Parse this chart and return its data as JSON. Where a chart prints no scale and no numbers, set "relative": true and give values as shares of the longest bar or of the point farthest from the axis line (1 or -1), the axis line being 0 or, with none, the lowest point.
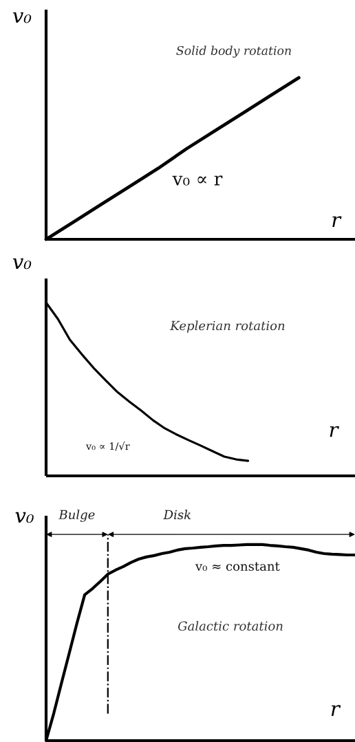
{
  "chart_data": [
    {
      "type": "line",
      "title": "Solid body rotation",
      "ylabel": "v₀",
      "xlabel": "r",
      "annotations": [
        "v₀ ∝ r"
      ],
      "relative": true,
      "categories": [
        null,
        null,
        null,
        null,
        null,
        null,
        null,
        null,
        null,
        null,
        null,
        null
      ],
      "series": [
        {
          "color": "#000000",
          "values": [
            0,
            0.11,
            0.22,
            0.33,
            0.44,
            0.56,
            0.67,
            0.78,
            0.89,
            1.0,
            null,
            null
          ]
        }
      ]
    },
    {
      "type": "line",
      "title": "Keplerian rotation",
      "ylabel": "v₀",
      "xlabel": "r",
      "annotations": [
        "v₀ ∝ 1/√r"
      ],
      "relative": true,
      "categories": [
        null,
        null,
        null,
        null,
        null,
        null,
        null,
        null,
        null,
        null,
        null,
        null,
        null,
        null,
        null,
        null,
        null,
        null,
        null,
        null,
        null,
        null,
        null,
        null,
        null,
        null,
        null
      ],
      "series": [
        {
          "color": "#000000",
          "values": [
            1.0,
            0.905,
            0.786,
            0.702,
            0.623,
            0.552,
            0.484,
            0.429,
            0.377,
            0.321,
            0.274,
            0.238,
            0.206,
            0.175,
            0.143,
            0.111,
            0.095,
            0.087,
            null,
            null,
            null,
            null,
            null,
            null,
            null,
            null,
            null
          ]
        }
      ]
    },
    {
      "type": "line",
      "title": "Galactic rotation",
      "ylabel": "v₀",
      "xlabel": "r",
      "annotations": [
        "Bulge",
        "Disk",
        "v₀ ≈ constant"
      ],
      "relative": true,
      "categories": [
        null,
        null,
        null,
        null,
        null,
        null,
        null,
        null,
        null,
        null,
        null,
        null,
        null,
        null,
        null,
        null,
        null,
        null,
        null,
        null,
        null,
        null,
        null,
        null,
        null,
        null,
        null,
        null,
        null,
        null,
        null,
        null,
        null,
        null,
        null,
        null,
        null,
        null,
        null,
        null,
        null
      ],
      "series": [
        {
          "color": "#000000",
          "values": [
            0,
            0.14,
            0.295,
            0.446,
            0.6,
            0.744,
            0.775,
            0.811,
            0.849,
            0.87,
            0.888,
            0.909,
            0.926,
            0.937,
            0.944,
            0.954,
            0.961,
            0.972,
            0.979,
            0.982,
            0.986,
            0.989,
            0.993,
            0.996,
            0.996,
            0.998,
            1.0,
            1.0,
            1.0,
            0.996,
            0.993,
            0.989,
            0.986,
            0.979,
            0.972,
            0.961,
            0.954,
            0.951,
            0.949,
            0.947,
            0.947
          ]
        }
      ]
    }
  ]
}
